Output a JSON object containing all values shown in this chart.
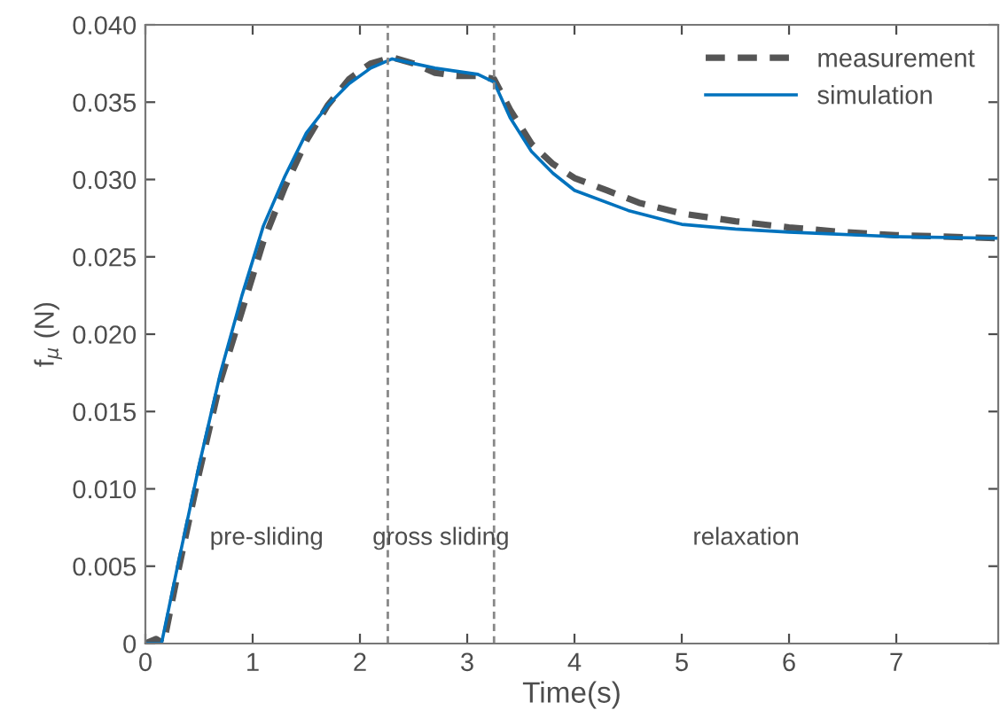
{
  "chart_data": {
    "type": "line",
    "xlabel": "Time(s)",
    "ylabel": "f$_{μ}$ (N)",
    "xlim": [
      0,
      7.95
    ],
    "xticks": [
      0,
      1,
      2,
      3,
      4,
      5,
      6,
      7
    ],
    "ylim": [
      0,
      0.04
    ],
    "yticks": [
      0,
      {
        "value": 0.005,
        "label": "0.005"
      },
      {
        "value": 0.01,
        "label": "0.010"
      },
      {
        "value": 0.015,
        "label": "0.015"
      },
      {
        "value": 0.02,
        "label": "0.020"
      },
      {
        "value": 0.025,
        "label": "0.025"
      },
      {
        "value": 0.03,
        "label": "0.030"
      },
      {
        "value": 0.035,
        "label": "0.035"
      },
      {
        "value": 0.04,
        "label": "0.040"
      }
    ],
    "grid": false,
    "legend": "top right",
    "marker": "none",
    "series": [
      {
        "name": "measurement",
        "color": "#555555",
        "line_style": "dashed",
        "x": [
          0,
          0.1,
          0.17,
          0.3,
          0.5,
          0.7,
          0.9,
          1.1,
          1.3,
          1.5,
          1.7,
          1.9,
          2.1,
          2.3,
          2.5,
          2.7,
          2.9,
          3.1,
          3.25,
          3.4,
          3.6,
          3.8,
          4.0,
          4.3,
          4.6,
          5,
          5.5,
          6,
          6.5,
          7,
          7.5,
          7.95
        ],
        "values": [
          0,
          0.0003,
          0,
          0.0045,
          0.011,
          0.017,
          0.0215,
          0.026,
          0.0295,
          0.0325,
          0.0348,
          0.0365,
          0.0375,
          0.0379,
          0.0375,
          0.0369,
          0.0367,
          0.0367,
          0.0365,
          0.0345,
          0.0323,
          0.031,
          0.0301,
          0.0293,
          0.0285,
          0.0278,
          0.0273,
          0.0269,
          0.0266,
          0.0264,
          0.0263,
          0.0262
        ]
      },
      {
        "name": "simulation",
        "color": "#0072bd",
        "line_style": "solid",
        "x": [
          0,
          0.15,
          0.3,
          0.5,
          0.7,
          0.9,
          1.1,
          1.3,
          1.5,
          1.7,
          1.9,
          2.1,
          2.3,
          2.5,
          2.7,
          2.9,
          3.1,
          3.25,
          3.4,
          3.6,
          3.8,
          4.0,
          4.5,
          5,
          5.5,
          6,
          7,
          7.95
        ],
        "values": [
          0,
          0,
          0.005,
          0.0115,
          0.0175,
          0.0225,
          0.027,
          0.0302,
          0.033,
          0.0348,
          0.0362,
          0.0372,
          0.0378,
          0.0375,
          0.0372,
          0.037,
          0.0368,
          0.0363,
          0.034,
          0.0318,
          0.0304,
          0.0293,
          0.028,
          0.0271,
          0.0268,
          0.0266,
          0.0263,
          0.0262
        ]
      }
    ],
    "ref_lines": [
      {
        "axis": "x",
        "value": 2.26,
        "color": "#888888",
        "line_style": "dashed"
      },
      {
        "axis": "x",
        "value": 3.25,
        "color": "#888888",
        "line_style": "dashed"
      }
    ],
    "annotations": [
      "pre-sliding",
      "gross sliding",
      "relaxation"
    ]
  }
}
